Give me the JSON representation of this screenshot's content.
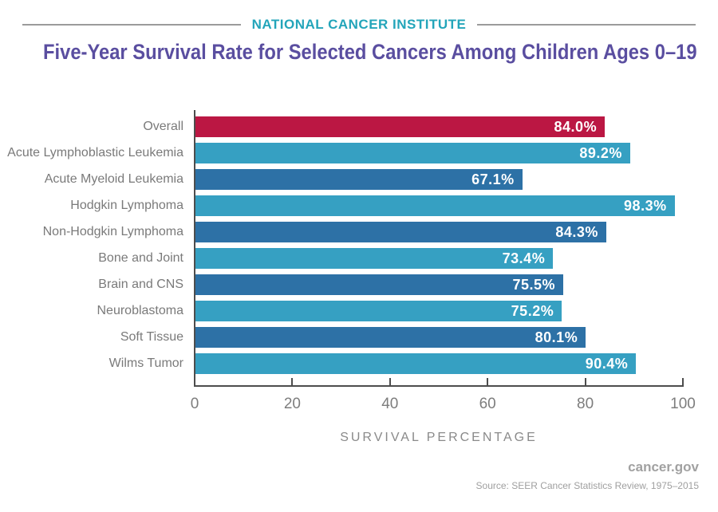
{
  "header": {
    "kicker": "NATIONAL CANCER INSTITUTE",
    "title": "Five-Year Survival Rate for Selected Cancers Among Children Ages 0–19"
  },
  "chart_data": {
    "type": "bar",
    "orientation": "horizontal",
    "title": "Five-Year Survival Rate for Selected Cancers Among Children Ages 0–19",
    "categories": [
      "Overall",
      "Acute Lymphoblastic Leukemia",
      "Acute Myeloid Leukemia",
      "Hodgkin Lymphoma",
      "Non-Hodgkin Lymphoma",
      "Bone and Joint",
      "Brain and CNS",
      "Neuroblastoma",
      "Soft Tissue",
      "Wilms Tumor"
    ],
    "values": [
      84.0,
      89.2,
      67.1,
      98.3,
      84.3,
      73.4,
      75.5,
      75.2,
      80.1,
      90.4
    ],
    "value_labels": [
      "84.0%",
      "89.2%",
      "67.1%",
      "98.3%",
      "84.3%",
      "73.4%",
      "75.5%",
      "75.2%",
      "80.1%",
      "90.4%"
    ],
    "color_keys": [
      "highlight",
      "light",
      "dark",
      "light",
      "dark",
      "light",
      "dark",
      "light",
      "dark",
      "light"
    ],
    "colors": {
      "highlight": "#bb1743",
      "light": "#36a0c2",
      "dark": "#2d71a6"
    },
    "xlabel": "SURVIVAL PERCENTAGE",
    "x_ticks": [
      0,
      20,
      40,
      60,
      80,
      100
    ],
    "xlim": [
      0,
      100
    ],
    "grid": false,
    "legend": false
  },
  "footer": {
    "brand": "cancer.gov",
    "source": "Source:  SEER Cancer Statistics Review, 1975–2015"
  }
}
